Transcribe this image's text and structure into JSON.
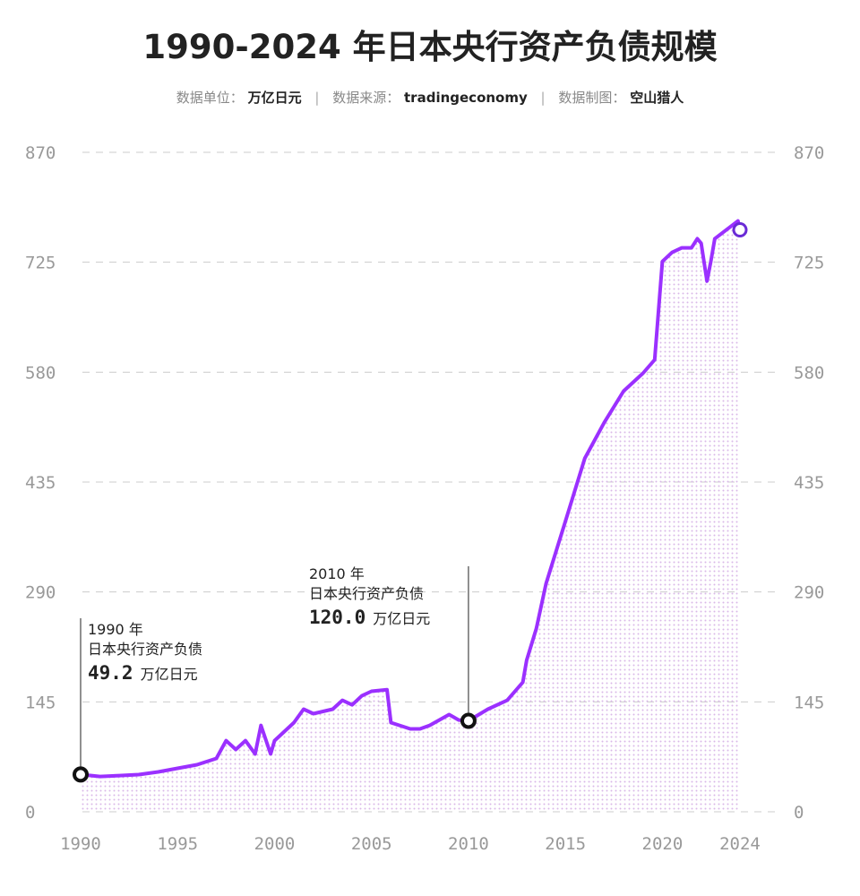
{
  "title": "1990-2024 年日本央行资产负债规模",
  "subtitle": {
    "unit_label": "数据单位：",
    "unit": "万亿日元",
    "source_label": "数据来源：",
    "source": "tradingeconomy",
    "author_label": "数据制图：",
    "author": "空山猎人",
    "separator": "|"
  },
  "chart_data": {
    "type": "area",
    "title": "1990-2024 年日本央行资产负债规模",
    "xlabel": "",
    "ylabel": "",
    "xlim": [
      1990,
      2024
    ],
    "ylim": [
      0,
      870
    ],
    "x_ticks": [
      "1990",
      "1995",
      "2000",
      "2005",
      "2010",
      "2015",
      "2020",
      "2024"
    ],
    "y_ticks": [
      "0",
      "145",
      "290",
      "435",
      "580",
      "725",
      "870"
    ],
    "grid": true,
    "colors": {
      "line": "#9b30ff",
      "fill_dots": "#d9b8e8",
      "marker_end": "#6a2bd6",
      "marker": "#111111"
    },
    "x": [
      1990,
      1991,
      1992,
      1993,
      1994,
      1995,
      1996,
      1997,
      1997.5,
      1998,
      1998.5,
      1999,
      1999.3,
      1999.8,
      2000,
      2001,
      2001.5,
      2002,
      2003,
      2003.5,
      2004,
      2004.5,
      2005,
      2005.8,
      2006,
      2007,
      2007.5,
      2008,
      2009,
      2009.5,
      2010,
      2011,
      2012,
      2012.8,
      2013,
      2013.5,
      2014,
      2015,
      2016,
      2017,
      2018,
      2019,
      2019.6,
      2020,
      2020.5,
      2021,
      2021.5,
      2021.8,
      2022,
      2022.3,
      2022.5,
      2022.7,
      2023,
      2023.5,
      2023.9,
      2024
    ],
    "values": [
      49.2,
      46.6,
      47.8,
      49,
      52.6,
      57.3,
      62,
      70.3,
      93.9,
      82.1,
      93.9,
      76.2,
      114,
      76.2,
      93.9,
      117.6,
      135.3,
      129.4,
      135.3,
      147,
      141,
      153,
      159,
      161,
      117.6,
      109.3,
      109.3,
      114,
      128.2,
      121,
      120.0,
      135.3,
      147,
      170.8,
      200,
      241.7,
      300.8,
      383.5,
      466.3,
      513.5,
      555,
      578.6,
      596.3,
      726,
      738,
      744,
      744,
      756,
      750,
      700,
      726,
      756,
      762,
      771.6,
      779.5,
      767.7
    ],
    "annotations": [
      {
        "year_label": "1990 年",
        "name": "日本央行资产负债",
        "value": "49.2",
        "unit": "万亿日元"
      },
      {
        "year_label": "2010 年",
        "name": "日本央行资产负债",
        "value": "120.0",
        "unit": "万亿日元"
      }
    ]
  }
}
